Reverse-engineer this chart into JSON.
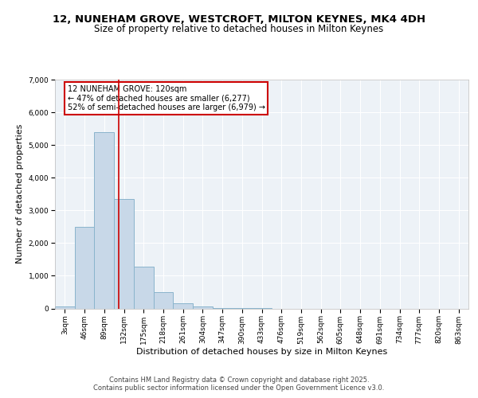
{
  "title_line1": "12, NUNEHAM GROVE, WESTCROFT, MILTON KEYNES, MK4 4DH",
  "title_line2": "Size of property relative to detached houses in Milton Keynes",
  "xlabel": "Distribution of detached houses by size in Milton Keynes",
  "ylabel": "Number of detached properties",
  "bar_color": "#c8d8e8",
  "bar_edge_color": "#8ab4cc",
  "vline_color": "#cc0000",
  "annotation_text": "12 NUNEHAM GROVE: 120sqm\n← 47% of detached houses are smaller (6,277)\n52% of semi-detached houses are larger (6,979) →",
  "footer_text": "Contains HM Land Registry data © Crown copyright and database right 2025.\nContains public sector information licensed under the Open Government Licence v3.0.",
  "categories": [
    "3sqm",
    "46sqm",
    "89sqm",
    "132sqm",
    "175sqm",
    "218sqm",
    "261sqm",
    "304sqm",
    "347sqm",
    "390sqm",
    "433sqm",
    "476sqm",
    "519sqm",
    "562sqm",
    "605sqm",
    "648sqm",
    "691sqm",
    "734sqm",
    "777sqm",
    "820sqm",
    "863sqm"
  ],
  "values": [
    70,
    2500,
    5400,
    3350,
    1280,
    500,
    150,
    60,
    10,
    2,
    1,
    0,
    0,
    0,
    0,
    0,
    0,
    0,
    0,
    0,
    0
  ],
  "ylim": [
    0,
    7000
  ],
  "yticks": [
    0,
    1000,
    2000,
    3000,
    4000,
    5000,
    6000,
    7000
  ],
  "bg_color": "#edf2f7",
  "grid_color": "#ffffff",
  "title_fontsize": 9.5,
  "subtitle_fontsize": 8.5,
  "axis_label_fontsize": 8,
  "tick_fontsize": 6.5,
  "annotation_fontsize": 7,
  "footer_fontsize": 6
}
